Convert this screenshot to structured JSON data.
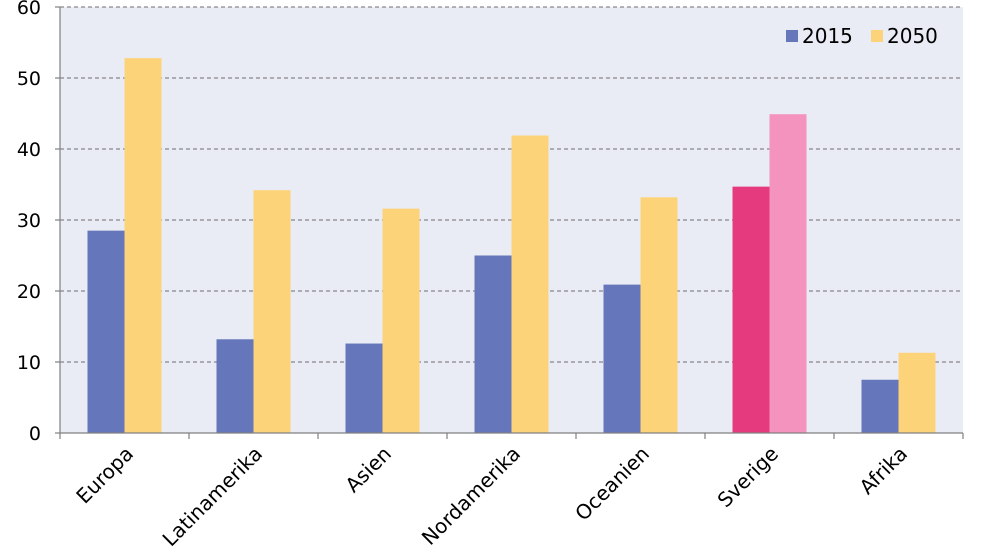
{
  "chart_data": {
    "type": "bar",
    "categories": [
      "Europa",
      "Latinamerika",
      "Asien",
      "Nordamerika",
      "Oceanien",
      "Sverige",
      "Afrika"
    ],
    "series": [
      {
        "name": "2015",
        "values": [
          28.5,
          13.2,
          12.6,
          25.0,
          20.9,
          34.7,
          7.5
        ],
        "color": "#6577BA"
      },
      {
        "name": "2050",
        "values": [
          52.8,
          34.2,
          31.6,
          41.9,
          33.2,
          44.9,
          11.3
        ],
        "color": "#FDD37A"
      }
    ],
    "highlight": {
      "category": "Sverige",
      "colors": [
        "#E63A7F",
        "#F493BE"
      ]
    },
    "ylim": [
      0,
      60
    ],
    "yticks": [
      "0",
      "10",
      "20",
      "30",
      "40",
      "50",
      "60"
    ],
    "grid": true,
    "legend": "top-right",
    "plot_background": "#E9EBF5",
    "title": "",
    "xlabel": "",
    "ylabel": ""
  }
}
